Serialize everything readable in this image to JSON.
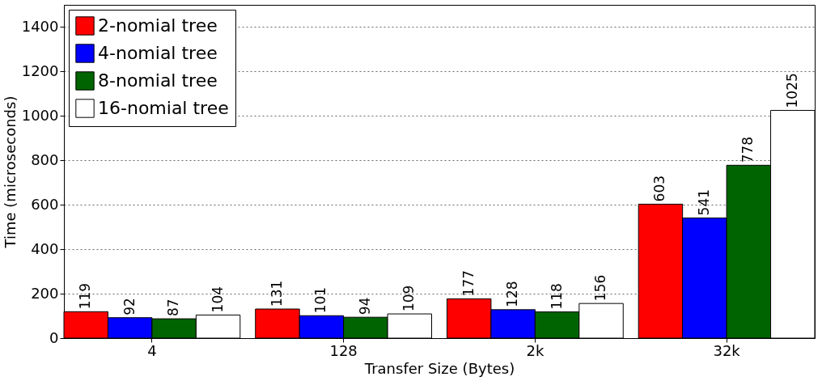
{
  "chart_data": {
    "type": "bar",
    "xlabel": "Transfer Size (Bytes)",
    "ylabel": "Time (microseconds)",
    "categories": [
      "4",
      "128",
      "2k",
      "32k"
    ],
    "series": [
      {
        "name": "2-nomial tree",
        "color": "#ff0000",
        "values": [
          119,
          131,
          177,
          603
        ]
      },
      {
        "name": "4-nomial tree",
        "color": "#0000ff",
        "values": [
          92,
          101,
          128,
          541
        ]
      },
      {
        "name": "8-nomial tree",
        "color": "#006400",
        "values": [
          87,
          94,
          118,
          778
        ]
      },
      {
        "name": "16-nomial tree",
        "color": "#ffffff",
        "values": [
          104,
          109,
          156,
          1025
        ]
      }
    ],
    "ylim": [
      0,
      1500
    ],
    "yticks": [
      0,
      200,
      400,
      600,
      800,
      1000,
      1200,
      1400
    ],
    "grid": "y",
    "legend": "top left",
    "data_labels": true
  }
}
